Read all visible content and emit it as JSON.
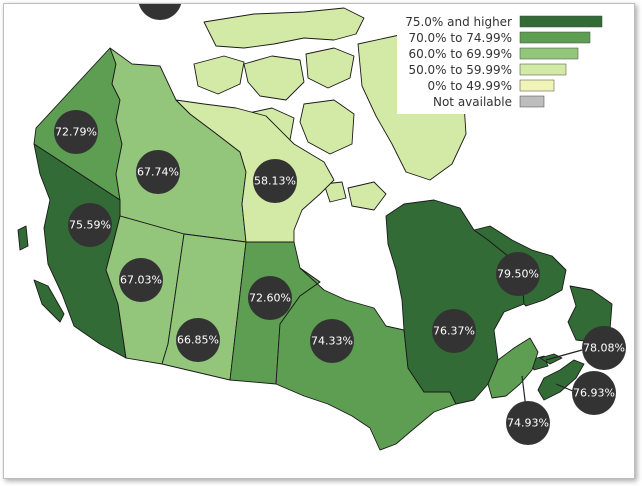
{
  "colors": {
    "c75": "#336b36",
    "c70": "#5e9e52",
    "c60": "#93c67a",
    "c50": "#d2eaa5",
    "c0": "#f0f4b8",
    "na": "#bdbdbd",
    "bubble": "#333333",
    "water": "#ffffff"
  },
  "legend": {
    "items": [
      {
        "label": "75.0% and higher",
        "color_key": "c75"
      },
      {
        "label": "70.0% to 74.99%",
        "color_key": "c70"
      },
      {
        "label": "60.0% to 69.99%",
        "color_key": "c60"
      },
      {
        "label": "50.0% to 59.99%",
        "color_key": "c50"
      },
      {
        "label": "0% to 49.99%",
        "color_key": "c0"
      },
      {
        "label": "Not available",
        "color_key": "na"
      }
    ]
  },
  "regions": [
    {
      "id": "yt",
      "value_label": "72.79%",
      "value": 72.79,
      "color_key": "c70"
    },
    {
      "id": "nt",
      "value_label": "67.74%",
      "value": 67.74,
      "color_key": "c60"
    },
    {
      "id": "nu",
      "value_label": "58.13%",
      "value": 58.13,
      "color_key": "c50"
    },
    {
      "id": "bc",
      "value_label": "75.59%",
      "value": 75.59,
      "color_key": "c75"
    },
    {
      "id": "ab",
      "value_label": "67.03%",
      "value": 67.03,
      "color_key": "c60"
    },
    {
      "id": "sk",
      "value_label": "66.85%",
      "value": 66.85,
      "color_key": "c60"
    },
    {
      "id": "mb",
      "value_label": "72.60%",
      "value": 72.6,
      "color_key": "c70"
    },
    {
      "id": "on",
      "value_label": "74.33%",
      "value": 74.33,
      "color_key": "c70"
    },
    {
      "id": "qc",
      "value_label": "76.37%",
      "value": 76.37,
      "color_key": "c75"
    },
    {
      "id": "nl",
      "value_label": "79.50%",
      "value": 79.5,
      "color_key": "c75"
    },
    {
      "id": "pe",
      "value_label": "78.08%",
      "value": 78.08,
      "color_key": "c75"
    },
    {
      "id": "ns",
      "value_label": "76.93%",
      "value": 76.93,
      "color_key": "c75"
    },
    {
      "id": "nb",
      "value_label": "74.93%",
      "value": 74.93,
      "color_key": "c70"
    }
  ]
}
